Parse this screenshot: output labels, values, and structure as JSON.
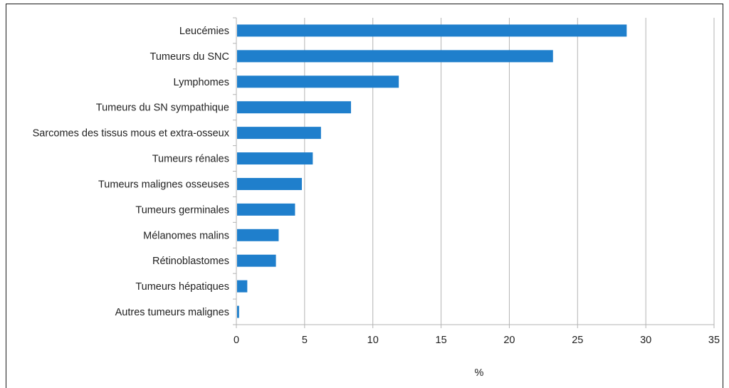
{
  "chart_data": {
    "type": "bar",
    "orientation": "horizontal",
    "categories": [
      "Leucémies",
      "Tumeurs du SNC",
      "Lymphomes",
      "Tumeurs du SN sympathique",
      "Sarcomes des tissus mous et extra-osseux",
      "Tumeurs rénales",
      "Tumeurs malignes osseuses",
      "Tumeurs germinales",
      "Mélanomes malins",
      "Rétinoblastomes",
      "Tumeurs hépatiques",
      "Autres tumeurs malignes"
    ],
    "values": [
      28.6,
      23.2,
      11.9,
      8.4,
      6.2,
      5.6,
      4.8,
      4.3,
      3.1,
      2.9,
      0.8,
      0.2
    ],
    "xlabel": "%",
    "ylabel": "",
    "title": "",
    "xlim": [
      0,
      35
    ],
    "xticks": [
      "0",
      "5",
      "10",
      "15",
      "20",
      "25",
      "30",
      "35"
    ],
    "grid": "vertical",
    "legend": "none",
    "bar_color": "#1f7fcc"
  }
}
